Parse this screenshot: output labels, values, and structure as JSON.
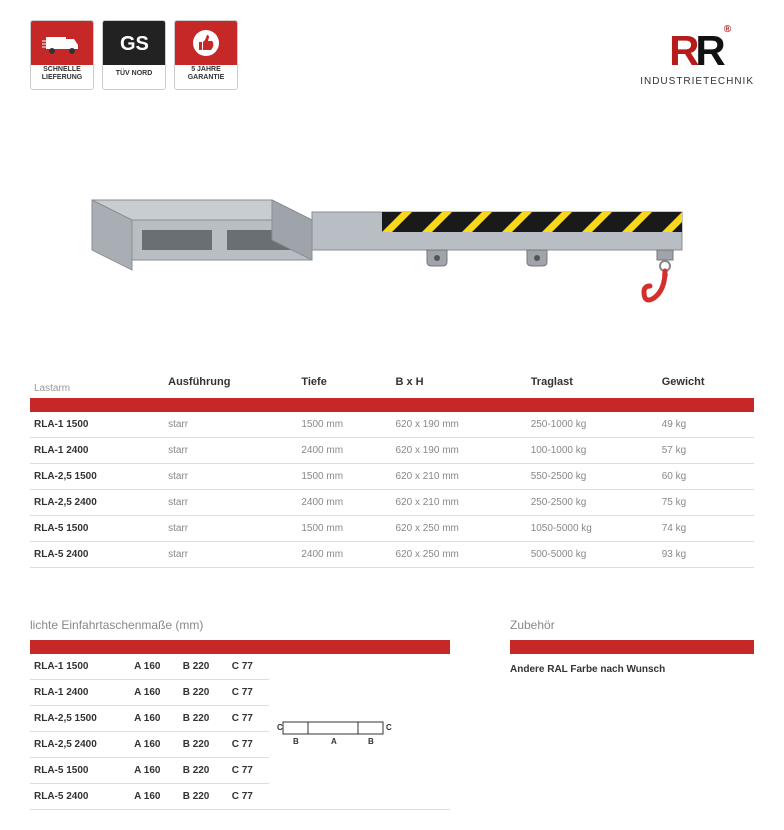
{
  "badges": [
    {
      "label": "SCHNELLE\nLIEFERUNG",
      "type": "delivery"
    },
    {
      "label": "TÜV NORD",
      "type": "gs"
    },
    {
      "label": "5 JAHRE\nGARANTIE",
      "type": "warranty"
    }
  ],
  "logo": {
    "brand": "RR",
    "sub": "INDUSTRIETECHNIK",
    "reg": "®"
  },
  "main_table": {
    "corner": "Lastarm",
    "headers": [
      "Ausführung",
      "Tiefe",
      "B x H",
      "Traglast",
      "Gewicht"
    ],
    "rows": [
      {
        "model": "RLA-1 1500",
        "ausf": "starr",
        "tiefe": "1500 mm",
        "bxh": "620 x 190 mm",
        "trag": "250-1000 kg",
        "gew": "49 kg"
      },
      {
        "model": "RLA-1 2400",
        "ausf": "starr",
        "tiefe": "2400 mm",
        "bxh": "620 x 190 mm",
        "trag": "100-1000 kg",
        "gew": "57 kg"
      },
      {
        "model": "RLA-2,5 1500",
        "ausf": "starr",
        "tiefe": "1500 mm",
        "bxh": "620 x 210 mm",
        "trag": "550-2500 kg",
        "gew": "60 kg"
      },
      {
        "model": "RLA-2,5 2400",
        "ausf": "starr",
        "tiefe": "2400 mm",
        "bxh": "620 x 210 mm",
        "trag": "250-2500 kg",
        "gew": "75 kg"
      },
      {
        "model": "RLA-5 1500",
        "ausf": "starr",
        "tiefe": "1500 mm",
        "bxh": "620 x 250 mm",
        "trag": "1050-5000 kg",
        "gew": "74 kg"
      },
      {
        "model": "RLA-5 2400",
        "ausf": "starr",
        "tiefe": "2400 mm",
        "bxh": "620 x 250 mm",
        "trag": "500-5000 kg",
        "gew": "93 kg"
      }
    ]
  },
  "dim_section": {
    "title": "lichte Einfahrtaschenmaße (mm)",
    "rows": [
      {
        "model": "RLA-1 1500",
        "a": "A 160",
        "b": "B 220",
        "c": "C 77"
      },
      {
        "model": "RLA-1 2400",
        "a": "A 160",
        "b": "B 220",
        "c": "C 77"
      },
      {
        "model": "RLA-2,5 1500",
        "a": "A 160",
        "b": "B 220",
        "c": "C 77"
      },
      {
        "model": "RLA-2,5 2400",
        "a": "A 160",
        "b": "B 220",
        "c": "C 77"
      },
      {
        "model": "RLA-5 1500",
        "a": "A 160",
        "b": "B 220",
        "c": "C 77"
      },
      {
        "model": "RLA-5 2400",
        "a": "A 160",
        "b": "B 220",
        "c": "C 77"
      }
    ],
    "diagram_labels": {
      "a": "A",
      "b": "B",
      "c": "C"
    }
  },
  "zubehor": {
    "title": "Zubehör",
    "text": "Andere RAL Farbe nach Wunsch"
  },
  "colors": {
    "brand_red": "#c62828",
    "hazard_yellow": "#f9d71c",
    "hazard_black": "#1a1a1a",
    "metal": "#b8bec4",
    "metal_dark": "#8a8f94",
    "hook_red": "#d32f2f"
  }
}
